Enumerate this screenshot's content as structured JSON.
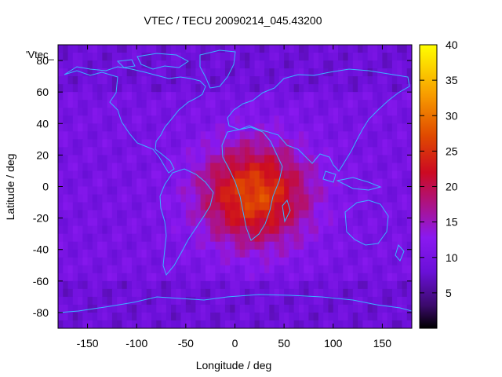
{
  "chart_data": {
    "type": "heatmap",
    "title": "VTEC / TECU 20090214_045.43200",
    "xlabel": "Longitude / deg",
    "ylabel": "Latitude / deg",
    "xlim": [
      -180,
      180
    ],
    "ylim": [
      -90,
      90
    ],
    "x_ticks": [
      -150,
      -100,
      -50,
      0,
      50,
      100,
      150
    ],
    "y_ticks": [
      -80,
      -60,
      -40,
      -20,
      0,
      20,
      40,
      60,
      80
    ],
    "colorbar": {
      "min": 0,
      "max": 40,
      "ticks": [
        5,
        10,
        15,
        20,
        25,
        30,
        35,
        40
      ]
    },
    "key_label": "'Vtec_",
    "colors": {
      "coastline": "#3ab3ff",
      "palette_low": "#000000",
      "palette_mid": "#cc0a22",
      "palette_high": "#ffff00"
    },
    "field_description": {
      "background_tecu": 10,
      "peak_region": {
        "center_lon": 20,
        "center_lat": -5,
        "peak_tecu": 27
      }
    }
  }
}
